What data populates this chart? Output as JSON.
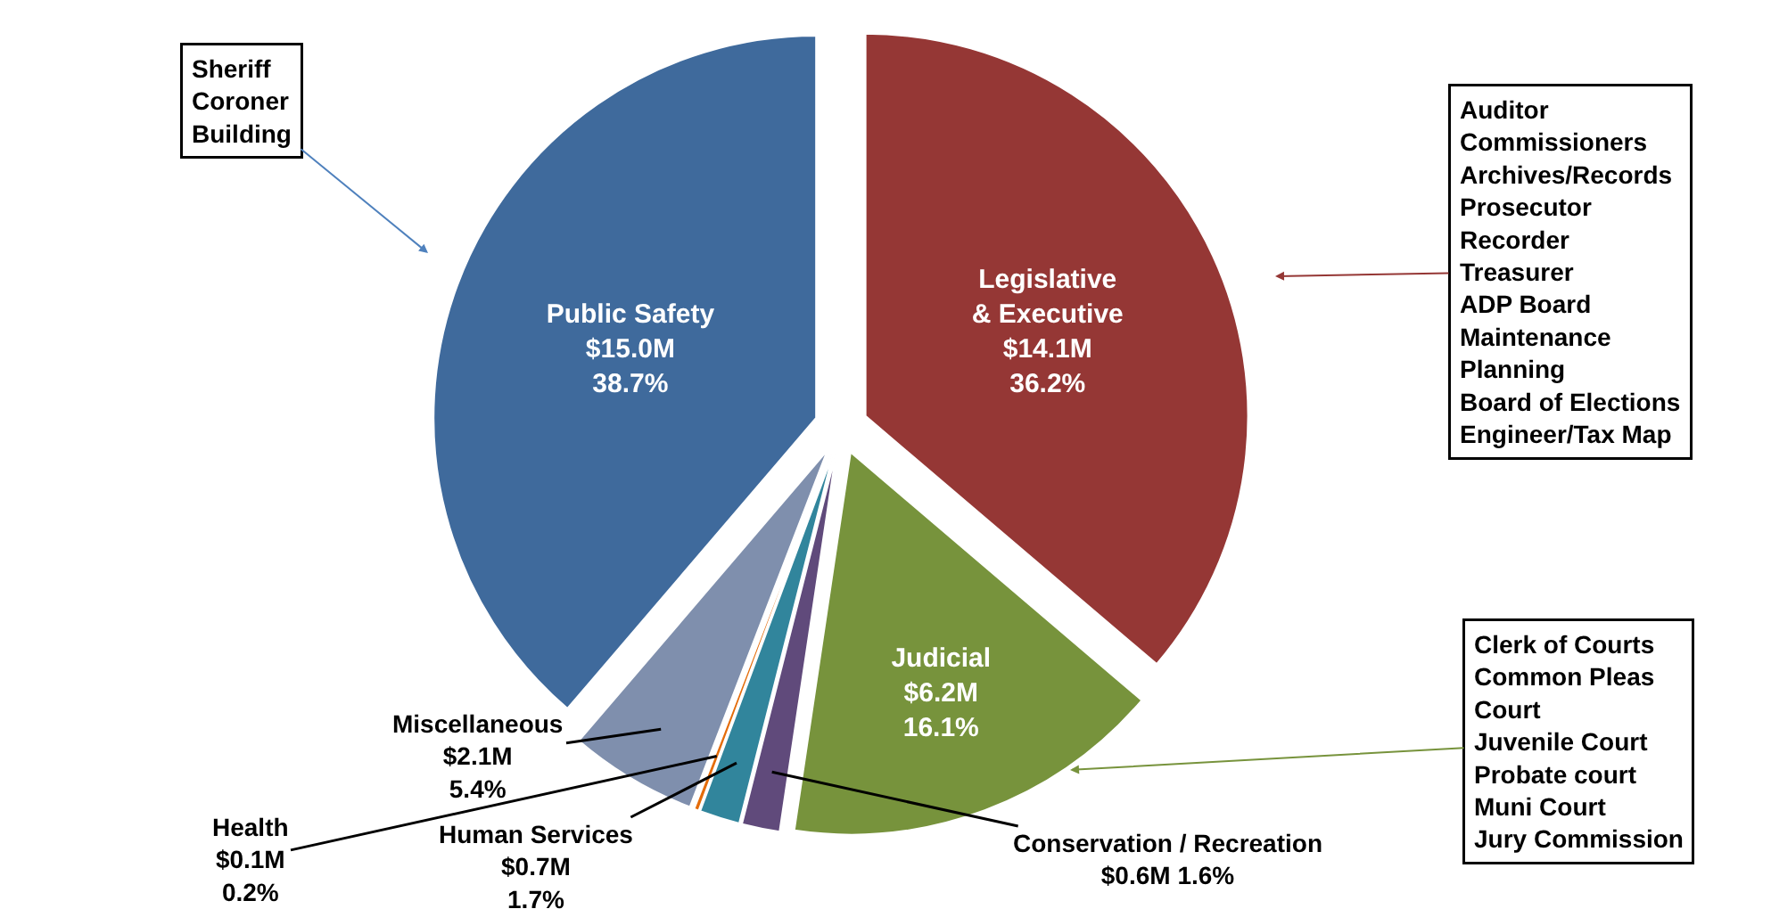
{
  "chart_data": {
    "type": "pie",
    "categories": [
      "Legislative & Executive",
      "Judicial",
      "Conservation / Recreation",
      "Human Services",
      "Health",
      "Miscellaneous",
      "Public Safety"
    ],
    "values": [
      36.2,
      16.1,
      1.6,
      1.7,
      0.2,
      5.4,
      38.7
    ],
    "value_labels": [
      "$14.1M\n36.2%",
      "$6.2M\n16.1%",
      "$0.6M 1.6%",
      "$0.7M\n1.7%",
      "$0.1M\n0.2%",
      "$2.1M\n5.4%",
      "$15.0M\n38.7%"
    ],
    "colors": [
      "#953735",
      "#77933c",
      "#604a7b",
      "#31859c",
      "#e46c0a",
      "#7f8fad",
      "#3f6a9c"
    ],
    "legend": false,
    "annotations": [
      "Auditor\nCommissioners\nArchives/Records\nProsecutor\nRecorder\nTreasurer\nADP Board\nMaintenance\nPlanning\nBoard of Elections\nEngineer/Tax Map",
      "Clerk of Courts\nCommon Pleas\nCourt\nJuvenile Court\nProbate court\nMuni Court\nJury Commission",
      "Sheriff\nCoroner\nBuilding"
    ]
  }
}
